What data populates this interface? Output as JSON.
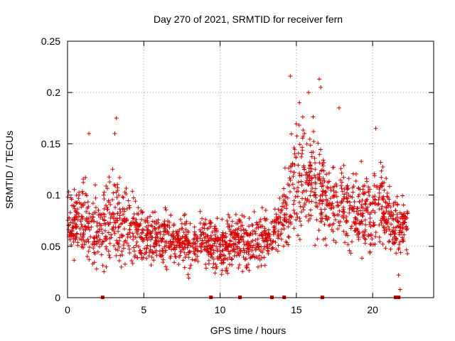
{
  "chart_data": {
    "type": "scatter",
    "title": "Day 270 of 2021, SRMTID for receiver fern",
    "xlabel": "GPS time / hours",
    "ylabel": "SRMTID / TECUs",
    "xlim": [
      0,
      24
    ],
    "ylim": [
      0,
      0.25
    ],
    "x_ticks": [
      0,
      5,
      10,
      15,
      20
    ],
    "x_tick_labels": [
      "0",
      "5",
      "10",
      "15",
      "20"
    ],
    "y_ticks": [
      0,
      0.05,
      0.1,
      0.15,
      0.2,
      0.25
    ],
    "y_tick_labels": [
      "0",
      "0.05",
      "0.1",
      "0.15",
      "0.2",
      "0.25"
    ],
    "grid": true,
    "series_color": "#dd0000",
    "marker": "+",
    "density_profile": {
      "hours": [
        0,
        1,
        2,
        3,
        4,
        5,
        6,
        7,
        8,
        9,
        10,
        11,
        12,
        13,
        14,
        14.5,
        15,
        15.5,
        16,
        17,
        18,
        19,
        20,
        20.5,
        21,
        22,
        22.3
      ],
      "center": [
        0.075,
        0.072,
        0.07,
        0.075,
        0.068,
        0.06,
        0.058,
        0.055,
        0.052,
        0.055,
        0.05,
        0.052,
        0.055,
        0.06,
        0.07,
        0.1,
        0.12,
        0.125,
        0.115,
        0.095,
        0.09,
        0.085,
        0.08,
        0.1,
        0.075,
        0.07,
        0.07
      ],
      "spread": [
        0.02,
        0.03,
        0.03,
        0.035,
        0.025,
        0.02,
        0.02,
        0.02,
        0.02,
        0.02,
        0.02,
        0.02,
        0.02,
        0.02,
        0.02,
        0.035,
        0.045,
        0.045,
        0.04,
        0.035,
        0.03,
        0.03,
        0.03,
        0.03,
        0.025,
        0.02,
        0.02
      ]
    },
    "peak_points": [
      {
        "x": 1.4,
        "y": 0.16
      },
      {
        "x": 3.2,
        "y": 0.175
      },
      {
        "x": 3.1,
        "y": 0.16
      },
      {
        "x": 14.6,
        "y": 0.216
      },
      {
        "x": 15.2,
        "y": 0.19
      },
      {
        "x": 15.8,
        "y": 0.2
      },
      {
        "x": 16.5,
        "y": 0.213
      },
      {
        "x": 16.6,
        "y": 0.205
      },
      {
        "x": 17.8,
        "y": 0.185
      },
      {
        "x": 20.2,
        "y": 0.165
      },
      {
        "x": 21.8,
        "y": 0.008
      },
      {
        "x": 21.7,
        "y": 0.022
      }
    ],
    "baseline_markers": [
      2.3,
      9.4,
      11.3,
      13.4,
      14.2,
      16.7,
      21.5,
      21.7
    ]
  }
}
